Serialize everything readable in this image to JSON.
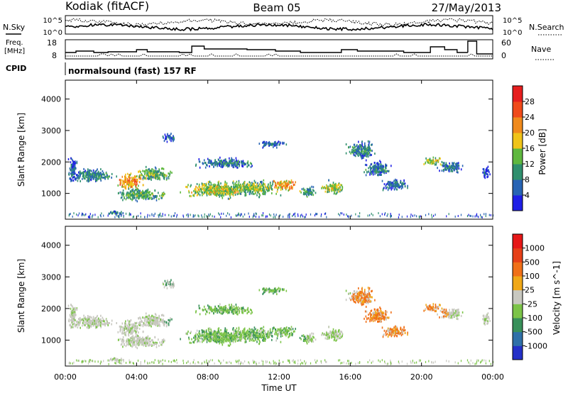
{
  "header": {
    "station": "Kodiak (fitACF)",
    "beam": "Beam 05",
    "date": "27/May/2013"
  },
  "top_panels": {
    "noise": {
      "left_label": "N.Sky",
      "right_label": "N.Search",
      "left_ticks": [
        "10^5",
        "10^0"
      ],
      "right_ticks": [
        "10^5",
        "10^0"
      ]
    },
    "freq": {
      "left_label_1": "Freq.",
      "left_label_2": "[MHz]",
      "left_ticks": [
        "18",
        "8"
      ],
      "right_label": "Nave",
      "right_ticks": [
        "60",
        "0"
      ]
    },
    "cpid": {
      "label": "CPID",
      "value": "normalsound (fast) 157 RF"
    }
  },
  "chart_data": [
    {
      "type": "heatmap",
      "name": "power",
      "ylabel": "Slant Range [km]",
      "xlabel": "",
      "ylim": [
        180,
        4600
      ],
      "yticks": [
        "1000",
        "2000",
        "3000",
        "4000"
      ],
      "xlim_hours": [
        0,
        24
      ],
      "colorbar": {
        "label": "Power [dB]",
        "ticks": [
          "4",
          "8",
          "12",
          "16",
          "20",
          "24",
          "28"
        ],
        "colors": [
          "#1f1fe6",
          "#2864b4",
          "#2f8f6e",
          "#5fb83f",
          "#f0c419",
          "#f08a1c",
          "#f04a1a",
          "#e61e1e"
        ]
      }
    },
    {
      "type": "heatmap",
      "name": "velocity",
      "ylabel": "Slant Range [km]",
      "xlabel": "Time UT",
      "ylim": [
        180,
        4600
      ],
      "yticks": [
        "1000",
        "2000",
        "3000",
        "4000"
      ],
      "xticks": [
        "00:00",
        "04:00",
        "08:00",
        "12:00",
        "16:00",
        "20:00",
        "00:00"
      ],
      "colorbar": {
        "label": "Velocity [m s^-1]",
        "ticks": [
          "1000",
          "500",
          "100",
          "25",
          "-25",
          "-100",
          "-500",
          "-1000"
        ],
        "colors": [
          "#2430c8",
          "#2f70a8",
          "#38905a",
          "#7cc448",
          "#c8c8c0",
          "#f0a818",
          "#f07018",
          "#e64018",
          "#e61818"
        ]
      }
    }
  ]
}
